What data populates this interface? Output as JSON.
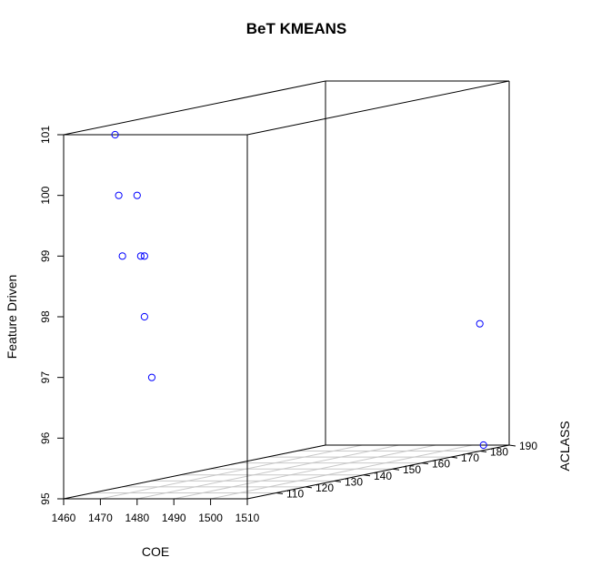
{
  "chart_data": {
    "type": "scatter3d",
    "title": "BeT KMEANS",
    "xlabel": "COE",
    "ylabel": "ACLASS",
    "zlabel": "Feature Driven",
    "xlim": [
      1460,
      1510
    ],
    "ylim": [
      100,
      190
    ],
    "zlim": [
      95,
      101
    ],
    "x_ticks": [
      1460,
      1470,
      1480,
      1490,
      1500,
      1510
    ],
    "y_ticks": [
      110,
      120,
      130,
      140,
      150,
      160,
      170,
      180,
      190
    ],
    "z_ticks": [
      95,
      96,
      97,
      98,
      99,
      100,
      101
    ],
    "grid": "base-plane",
    "point_color": "#0000ff",
    "points": [
      {
        "x": 1474,
        "y": 100,
        "z": 101
      },
      {
        "x": 1475,
        "y": 100,
        "z": 100
      },
      {
        "x": 1480,
        "y": 100,
        "z": 100
      },
      {
        "x": 1476,
        "y": 100,
        "z": 99
      },
      {
        "x": 1481,
        "y": 100,
        "z": 99
      },
      {
        "x": 1482,
        "y": 100,
        "z": 99
      },
      {
        "x": 1482,
        "y": 100,
        "z": 98
      },
      {
        "x": 1484,
        "y": 100,
        "z": 97
      },
      {
        "x": 1502,
        "y": 190,
        "z": 97
      },
      {
        "x": 1503,
        "y": 190,
        "z": 95
      }
    ]
  }
}
